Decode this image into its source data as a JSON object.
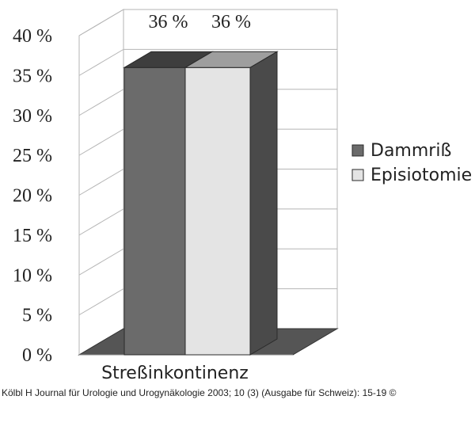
{
  "chart_data": {
    "type": "bar",
    "categories": [
      "Streßinkontinenz"
    ],
    "series": [
      {
        "name": "Dammriß",
        "values": [
          36
        ],
        "value_label": "36 %",
        "color": "#6b6b6b",
        "top_color": "#3e3e3e"
      },
      {
        "name": "Episiotomie",
        "values": [
          36
        ],
        "value_label": "36 %",
        "color": "#e4e4e4",
        "top_color": "#9e9e9e"
      }
    ],
    "ylim": [
      0,
      40
    ],
    "yticks": [
      0,
      5,
      10,
      15,
      20,
      25,
      30,
      35,
      40
    ],
    "ytick_labels": [
      "0 %",
      "5 %",
      "10 %",
      "15 %",
      "20 %",
      "25 %",
      "30 %",
      "35 %",
      "40 %"
    ],
    "title": "",
    "xlabel": "",
    "ylabel": "",
    "grid": true,
    "legend_position": "right",
    "style": "3d",
    "side_color": "#4a4a4a",
    "floor_color": "#555555"
  },
  "caption": "Kölbl H Journal für Urologie und Urogynäkologie 2003; 10 (3) (Ausgabe für Schweiz): 15-19 ©"
}
